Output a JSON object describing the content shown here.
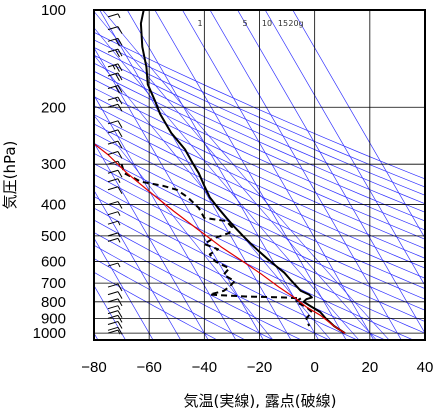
{
  "chart_data": {
    "type": "line",
    "xlabel": "気温(実線), 露点(破線)",
    "ylabel": "気圧(hPa)",
    "xlim": [
      -80,
      40
    ],
    "ylim": [
      1050,
      100
    ],
    "y_scale": "log",
    "x_ticks": [
      "−80",
      "−60",
      "−40",
      "−20",
      "0",
      "20",
      "40"
    ],
    "y_ticks": [
      "100",
      "200",
      "300",
      "400",
      "500",
      "600",
      "700",
      "800",
      "900",
      "1000"
    ],
    "grid": true,
    "mixing_ratio_labels": [
      "1",
      "5",
      "10",
      "15",
      "20g"
    ],
    "series": [
      {
        "points": [
          [
            -62,
            100
          ],
          [
            -63,
            110
          ],
          [
            -62.5,
            130
          ],
          [
            -61,
            150
          ],
          [
            -60.5,
            170
          ],
          [
            -58,
            190
          ],
          [
            -56,
            210
          ],
          [
            -52,
            240
          ],
          [
            -47,
            270
          ],
          [
            -44,
            300
          ],
          [
            -42,
            320
          ],
          [
            -40,
            350
          ],
          [
            -38,
            380
          ],
          [
            -35,
            410
          ],
          [
            -32,
            440
          ],
          [
            -29,
            470
          ],
          [
            -26,
            500
          ],
          [
            -23,
            530
          ],
          [
            -20,
            560
          ],
          [
            -17,
            590
          ],
          [
            -14,
            620
          ],
          [
            -11,
            650
          ],
          [
            -9,
            680
          ],
          [
            -7,
            710
          ],
          [
            -5,
            740
          ],
          [
            -2,
            760
          ],
          [
            -1,
            775
          ],
          [
            -3,
            785
          ],
          [
            -4,
            800
          ],
          [
            -1,
            830
          ],
          [
            2,
            860
          ],
          [
            4,
            900
          ],
          [
            7,
            950
          ],
          [
            11,
            1000
          ]
        ]
      },
      {
        "points": [
          [
            -70,
            300
          ],
          [
            -69,
            320
          ],
          [
            -63,
            340
          ],
          [
            -55,
            350
          ],
          [
            -50,
            360
          ],
          [
            -46,
            380
          ],
          [
            -42,
            410
          ],
          [
            -40,
            440
          ],
          [
            -32,
            450
          ],
          [
            -30,
            470
          ],
          [
            -31,
            490
          ],
          [
            -37,
            510
          ],
          [
            -40,
            530
          ],
          [
            -35,
            550
          ],
          [
            -38,
            570
          ],
          [
            -36,
            600
          ],
          [
            -31,
            630
          ],
          [
            -33,
            660
          ],
          [
            -29,
            690
          ],
          [
            -31,
            720
          ],
          [
            -33,
            740
          ],
          [
            -38,
            760
          ],
          [
            -25,
            770
          ],
          [
            -12,
            775
          ],
          [
            -5,
            780
          ],
          [
            -7,
            800
          ],
          [
            -3,
            830
          ],
          [
            -1,
            860
          ],
          [
            -3,
            900
          ],
          [
            -2,
            950
          ]
        ]
      },
      {
        "points": [
          [
            11,
            1000
          ],
          [
            7,
            950
          ],
          [
            2,
            880
          ],
          [
            -3,
            830
          ],
          [
            -7,
            780
          ],
          [
            -13,
            720
          ],
          [
            -19,
            660
          ],
          [
            -26,
            600
          ],
          [
            -34,
            540
          ],
          [
            -42,
            480
          ],
          [
            -51,
            420
          ],
          [
            -59,
            370
          ],
          [
            -68,
            320
          ],
          [
            -75,
            280
          ],
          [
            -85,
            240
          ]
        ]
      }
    ],
    "wind_barbs": [
      {
        "p": 105,
        "ws": 5
      },
      {
        "p": 115,
        "ws": 10
      },
      {
        "p": 125,
        "ws": 20
      },
      {
        "p": 135,
        "ws": 20
      },
      {
        "p": 150,
        "ws": 25
      },
      {
        "p": 160,
        "ws": 20
      },
      {
        "p": 175,
        "ws": 20
      },
      {
        "p": 190,
        "ws": 15
      },
      {
        "p": 200,
        "ws": 10
      },
      {
        "p": 225,
        "ws": 10
      },
      {
        "p": 240,
        "ws": 10
      },
      {
        "p": 260,
        "ws": 10
      },
      {
        "p": 280,
        "ws": 10
      },
      {
        "p": 300,
        "ws": 5
      },
      {
        "p": 320,
        "ws": 10
      },
      {
        "p": 340,
        "ws": 5
      },
      {
        "p": 360,
        "ws": 10
      },
      {
        "p": 400,
        "ws": 10
      },
      {
        "p": 430,
        "ws": 5
      },
      {
        "p": 460,
        "ws": 5
      },
      {
        "p": 500,
        "ws": 5
      },
      {
        "p": 520,
        "ws": 5
      },
      {
        "p": 620,
        "ws": 5
      },
      {
        "p": 720,
        "ws": 10
      },
      {
        "p": 760,
        "ws": 10
      },
      {
        "p": 800,
        "ws": 10
      },
      {
        "p": 840,
        "ws": 5
      },
      {
        "p": 870,
        "ws": 10
      },
      {
        "p": 900,
        "ws": 10
      },
      {
        "p": 940,
        "ws": 10
      },
      {
        "p": 980,
        "ws": 10
      },
      {
        "p": 1000,
        "ws": 5
      }
    ],
    "colors": {
      "temperature": "#000000",
      "dewpoint": "#000000",
      "parcel": "#e00000",
      "isotherm_adiabat": "#3333ff",
      "mixing_ratio": "#3333ff",
      "grid": "#000000",
      "barb": "#000000"
    }
  }
}
